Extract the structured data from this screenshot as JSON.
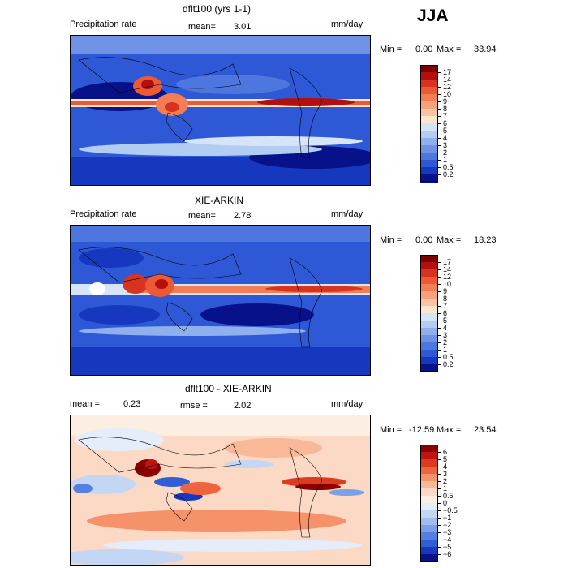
{
  "season": "JJA",
  "panels": [
    {
      "title": "dflt100 (yrs 1-1)",
      "left_label": "Precipitation rate",
      "mean_label": "mean=",
      "mean_value": "3.01",
      "units": "mm/day",
      "min_label": "Min =",
      "min_value": "0.00",
      "max_label": "Max =",
      "max_value": "33.94",
      "colorbar": {
        "labels": [
          "17",
          "14",
          "12",
          "10",
          "9",
          "8",
          "7",
          "6",
          "5",
          "4",
          "3",
          "2",
          "1",
          "0.5",
          "0.2"
        ],
        "colors": [
          "#7a0000",
          "#b40f0f",
          "#d8331e",
          "#eb5a34",
          "#f37e55",
          "#f7a27b",
          "#fac4a4",
          "#fde5d0",
          "#d6e4f7",
          "#b3cdf2",
          "#8fb0ec",
          "#6e93e6",
          "#4d76df",
          "#2e58d6",
          "#1638bf",
          "#06118a"
        ]
      }
    },
    {
      "title": "XIE-ARKIN",
      "left_label": "Precipitation rate",
      "mean_label": "mean=",
      "mean_value": "2.78",
      "units": "mm/day",
      "min_label": "Min =",
      "min_value": "0.00",
      "max_label": "Max =",
      "max_value": "18.23",
      "colorbar": {
        "labels": [
          "17",
          "14",
          "12",
          "10",
          "9",
          "8",
          "7",
          "6",
          "5",
          "4",
          "3",
          "2",
          "1",
          "0.5",
          "0.2"
        ],
        "colors": [
          "#7a0000",
          "#b40f0f",
          "#d8331e",
          "#eb5a34",
          "#f37e55",
          "#f7a27b",
          "#fac4a4",
          "#fde5d0",
          "#d6e4f7",
          "#b3cdf2",
          "#8fb0ec",
          "#6e93e6",
          "#4d76df",
          "#2e58d6",
          "#1638bf",
          "#06118a"
        ]
      }
    },
    {
      "title": "dflt100 - XIE-ARKIN",
      "left_label": "mean =",
      "left_value": "0.23",
      "mean_label": "rmse =",
      "mean_value": "2.02",
      "units": "mm/day",
      "min_label": "Min =",
      "min_value": "-12.59",
      "max_label": "Max =",
      "max_value": "23.54",
      "colorbar": {
        "labels": [
          "6",
          "5",
          "4",
          "3",
          "2",
          "1",
          "0.5",
          "0",
          "−0.5",
          "−1",
          "−2",
          "−3",
          "−4",
          "−5",
          "−6"
        ],
        "colors": [
          "#8a0000",
          "#c01414",
          "#dd3a22",
          "#ee6440",
          "#f5926a",
          "#f9b898",
          "#fcd9c4",
          "#fdeee2",
          "#e4edf9",
          "#c3d6f3",
          "#9fbdee",
          "#7aa0e8",
          "#5480e0",
          "#2f5ed6",
          "#1638bf",
          "#06118a"
        ]
      }
    }
  ]
}
